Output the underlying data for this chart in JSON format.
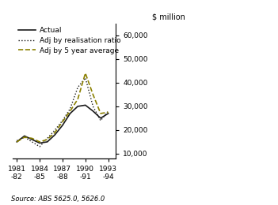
{
  "years": [
    1981,
    1982,
    1983,
    1984,
    1985,
    1986,
    1987,
    1988,
    1989,
    1990,
    1991,
    1992,
    1993
  ],
  "actual": [
    15000,
    17500,
    16000,
    14500,
    15000,
    18000,
    22000,
    27000,
    30000,
    30500,
    28000,
    25000,
    27000
  ],
  "adj_realisation": [
    15500,
    17000,
    15000,
    13000,
    16500,
    20000,
    24000,
    29000,
    38000,
    42000,
    30000,
    24000,
    28000
  ],
  "adj_5year": [
    15000,
    17000,
    16500,
    15000,
    16000,
    19000,
    23500,
    28000,
    33000,
    44000,
    35000,
    27000,
    27500
  ],
  "xticks": [
    1981,
    1984,
    1987,
    1990,
    1993
  ],
  "xticklabels": [
    "1981\n-82",
    "1984\n-85",
    "1987\n-88",
    "1990\n-91",
    "1993\n-94"
  ],
  "yticks": [
    10000,
    20000,
    30000,
    40000,
    50000,
    60000
  ],
  "yticklabels": [
    "10,000",
    "20,000",
    "30,000",
    "40,000",
    "50,000",
    "60,000"
  ],
  "ylim": [
    8000,
    65000
  ],
  "xlim": [
    1980.5,
    1994
  ],
  "ylabel": "$ million",
  "source": "Source: ABS 5625.0, 5626.0",
  "legend_actual": "Actual",
  "legend_adj_real": "Adj by realisation ratio",
  "legend_adj_5yr": "Adj by 5 year average",
  "line_color_actual": "#1a1a1a",
  "line_color_adj_real": "#1a1a1a",
  "line_color_adj_5yr": "#8B8000",
  "bg_color": "#ffffff"
}
